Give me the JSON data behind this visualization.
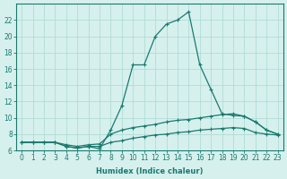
{
  "xlabel": "Humidex (Indice chaleur)",
  "x": [
    0,
    1,
    2,
    3,
    4,
    5,
    6,
    7,
    8,
    9,
    10,
    11,
    12,
    13,
    14,
    15,
    16,
    17,
    18,
    19,
    20,
    21,
    22,
    23
  ],
  "line1": [
    7.0,
    7.0,
    7.0,
    7.0,
    6.5,
    6.3,
    6.5,
    6.2,
    8.5,
    11.5,
    16.5,
    16.5,
    20.0,
    21.5,
    22.0,
    23.0,
    16.5,
    13.5,
    10.5,
    10.3,
    10.2,
    9.5,
    8.5,
    8.0
  ],
  "line2": [
    7.0,
    7.0,
    7.0,
    7.0,
    6.7,
    6.5,
    6.7,
    6.8,
    8.0,
    8.5,
    8.8,
    9.0,
    9.2,
    9.5,
    9.7,
    9.8,
    10.0,
    10.2,
    10.4,
    10.5,
    10.2,
    9.5,
    8.5,
    8.0
  ],
  "line3": [
    7.0,
    7.0,
    7.0,
    7.0,
    6.5,
    6.3,
    6.5,
    6.5,
    7.0,
    7.2,
    7.5,
    7.7,
    7.9,
    8.0,
    8.2,
    8.3,
    8.5,
    8.6,
    8.7,
    8.8,
    8.7,
    8.2,
    8.0,
    7.9
  ],
  "line_color": "#1a7a6e",
  "bg_color": "#d6f0ee",
  "grid_color": "#aad8d4",
  "ylim": [
    6,
    24
  ],
  "yticks": [
    6,
    8,
    10,
    12,
    14,
    16,
    18,
    20,
    22
  ],
  "xlim": [
    -0.5,
    23.5
  ],
  "marker": "+",
  "marker_size": 3.5,
  "linewidth": 0.9,
  "xlabel_fontsize": 6.0,
  "tick_fontsize": 5.5
}
